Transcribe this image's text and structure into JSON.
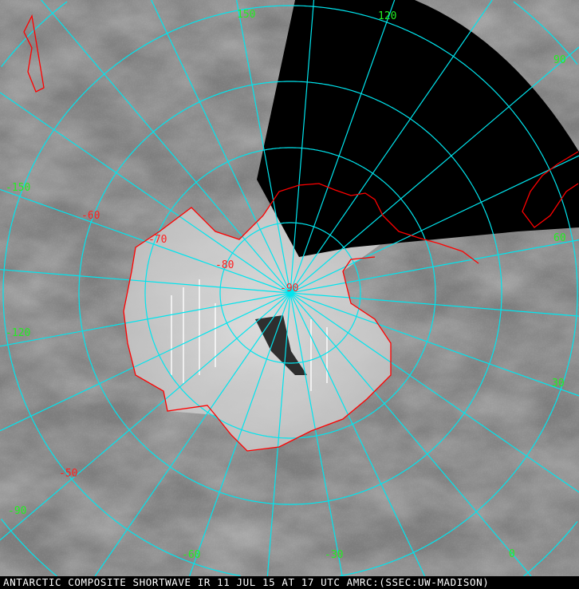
{
  "caption": "ANTARCTIC COMPOSITE SHORTWAVE IR 11 JUL 15 AT 17 UTC AMRC:(SSEC:UW-MADISON)",
  "colors": {
    "grid": "#00e5ee",
    "coastline": "#ff0000",
    "longitude_labels": "#22ee22",
    "latitude_labels": "#ff2020",
    "no_data": "#000000"
  },
  "longitude_labels": [
    "150",
    "120",
    "90",
    "60",
    "30",
    "0",
    "-30",
    "-60",
    "-90",
    "-120",
    "-150"
  ],
  "latitude_labels": [
    "-50",
    "-60",
    "-70",
    "-80",
    "-90"
  ]
}
